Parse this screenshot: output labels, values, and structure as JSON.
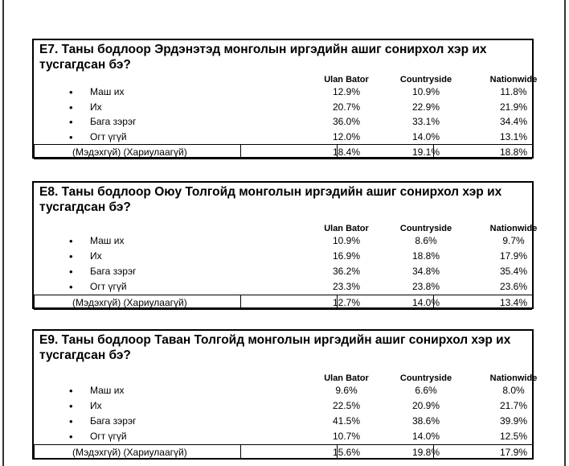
{
  "columns": [
    "Ulan Bator",
    "Countryside",
    "Nationwide"
  ],
  "questions": [
    {
      "title_line1": "E7. Таны бодлоор Эрдэнэтэд монголын иргэдийн ашиг сонирхол хэр их",
      "title_line2": "тусгагдсан бэ?",
      "rows": [
        {
          "bullet": "•",
          "label": "Маш их",
          "values": [
            "12.9%",
            "10.9%",
            "11.8%"
          ]
        },
        {
          "bullet": "•",
          "label": "Их",
          "values": [
            "20.7%",
            "22.9%",
            "21.9%"
          ]
        },
        {
          "bullet": "•",
          "label": "Бага зэрэг",
          "values": [
            "36.0%",
            "33.1%",
            "34.4%"
          ]
        },
        {
          "bullet": "•",
          "label": "Огт үгүй",
          "values": [
            "12.0%",
            "14.0%",
            "13.1%"
          ]
        }
      ],
      "unknown": {
        "label": "(Мэдэхгүй) (Хариулаагүй)",
        "values": [
          "18.4%",
          "19.1%",
          "18.8%"
        ]
      }
    },
    {
      "title_line1": "E8. Таны бодлоор Оюу Толгойд монголын иргэдийн ашиг сонирхол хэр их",
      "title_line2": "тусгагдсан бэ?",
      "rows": [
        {
          "bullet": "•",
          "label": "Маш их",
          "values": [
            "10.9%",
            "8.6%",
            "9.7%"
          ]
        },
        {
          "bullet": "•",
          "label": "Их",
          "values": [
            "16.9%",
            "18.8%",
            "17.9%"
          ]
        },
        {
          "bullet": "•",
          "label": "Бага зэрэг",
          "values": [
            "36.2%",
            "34.8%",
            "35.4%"
          ]
        },
        {
          "bullet": "•",
          "label": "Огт үгүй",
          "values": [
            "23.3%",
            "23.8%",
            "23.6%"
          ]
        }
      ],
      "unknown": {
        "label": "(Мэдэхгүй) (Хариулаагүй)",
        "values": [
          "12.7%",
          "14.0%",
          "13.4%"
        ]
      }
    },
    {
      "title_line1": "E9. Таны бодлоор Таван Толгойд монголын иргэдийн ашиг сонирхол хэр их",
      "title_line2": "тусгагдсан бэ?",
      "rows": [
        {
          "bullet": "•",
          "label": "Маш их",
          "values": [
            "9.6%",
            "6.6%",
            "8.0%"
          ]
        },
        {
          "bullet": "•",
          "label": "Их",
          "values": [
            "22.5%",
            "20.9%",
            "21.7%"
          ]
        },
        {
          "bullet": "•",
          "label": "Бага зэрэг",
          "values": [
            "41.5%",
            "38.6%",
            "39.9%"
          ]
        },
        {
          "bullet": "•",
          "label": "Огт үгүй",
          "values": [
            "10.7%",
            "14.0%",
            "12.5%"
          ]
        }
      ],
      "unknown": {
        "label": "(Мэдэхгүй) (Хариулаагүй)",
        "values": [
          "15.6%",
          "19.8%",
          "17.9%"
        ]
      }
    }
  ]
}
